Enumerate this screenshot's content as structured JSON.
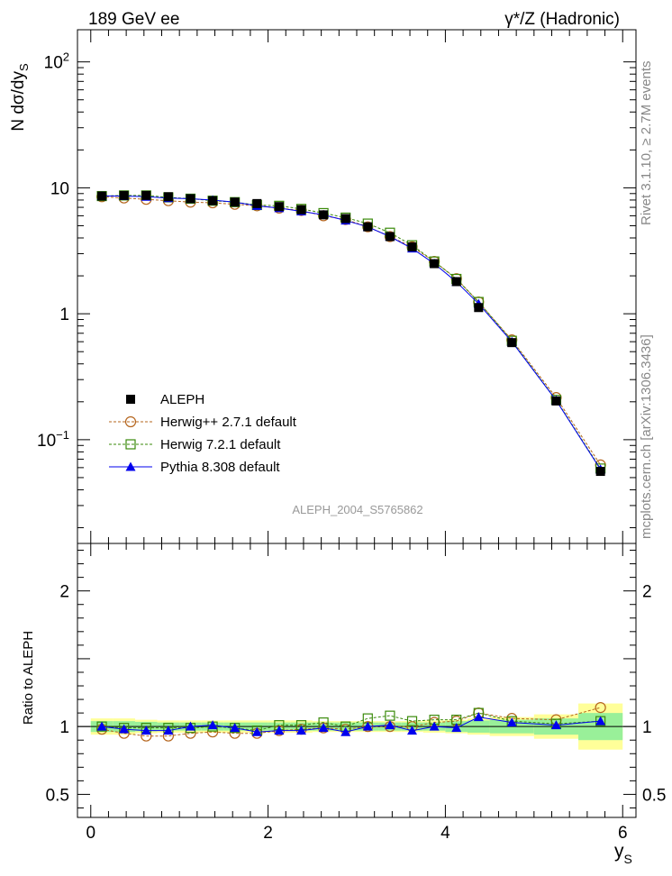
{
  "header": {
    "left": "189 GeV ee",
    "right": "γ*/Z (Hadronic)"
  },
  "side_texts": {
    "rivet": "Rivet 3.1.10, ≥ 2.7M events",
    "mcplots": "mcplots.cern.ch [arXiv:1306.3436]"
  },
  "watermark": "ALEPH_2004_S5765862",
  "colors": {
    "data": "#000000",
    "herwigpp": "#b5651d",
    "herwig7": "#3a8a0a",
    "pythia": "#0000ee",
    "band_inner": "#99f099",
    "band_outer": "#ffff99"
  },
  "chart_data": [
    {
      "type": "scatter",
      "panel": "main",
      "ylabel_main": "N dσ/dy",
      "ylabel_sub": "S",
      "yscale": "log",
      "xlim": [
        -0.15,
        6.15
      ],
      "ylim": [
        0.015,
        180
      ],
      "yticks_major": [
        {
          "value": 100,
          "base": "10",
          "exp": "2"
        },
        {
          "value": 10,
          "base": "10",
          "exp": ""
        },
        {
          "value": 1,
          "base": "1",
          "exp": ""
        },
        {
          "value": 0.1,
          "base": "10",
          "exp": "−1"
        }
      ],
      "x": [
        0.125,
        0.375,
        0.625,
        0.875,
        1.125,
        1.375,
        1.625,
        1.875,
        2.125,
        2.375,
        2.625,
        2.875,
        3.125,
        3.375,
        3.625,
        3.875,
        4.125,
        4.375,
        4.75,
        5.25,
        5.75
      ],
      "series": [
        {
          "name": "ALEPH",
          "key": "data",
          "marker": "square-filled",
          "values": [
            8.6,
            8.7,
            8.7,
            8.5,
            8.2,
            7.9,
            7.7,
            7.5,
            7.1,
            6.7,
            6.1,
            5.7,
            4.9,
            4.1,
            3.4,
            2.5,
            1.8,
            1.12,
            0.59,
            0.203,
            0.056
          ]
        },
        {
          "name": "Herwig++ 2.7.1 default",
          "key": "herwigpp",
          "marker": "circle-open",
          "dash": "3,2",
          "values": [
            8.5,
            8.3,
            8.1,
            7.9,
            7.7,
            7.6,
            7.4,
            7.2,
            6.9,
            6.6,
            6.0,
            5.6,
            4.9,
            4.1,
            3.4,
            2.6,
            1.9,
            1.24,
            0.62,
            0.216,
            0.063
          ]
        },
        {
          "name": "Herwig 7.2.1 default",
          "key": "herwig7",
          "marker": "square-open",
          "dash": "3,2",
          "values": [
            8.6,
            8.7,
            8.7,
            8.4,
            8.2,
            7.9,
            7.7,
            7.3,
            7.2,
            6.8,
            6.3,
            5.8,
            5.2,
            4.4,
            3.5,
            2.6,
            1.89,
            1.24,
            0.61,
            0.207,
            0.059
          ]
        },
        {
          "name": "Pythia 8.308 default",
          "key": "pythia",
          "marker": "triangle-filled",
          "dash": "",
          "values": [
            8.6,
            8.6,
            8.5,
            8.3,
            8.2,
            8.0,
            7.7,
            7.2,
            6.9,
            6.5,
            6.1,
            5.5,
            4.9,
            4.1,
            3.3,
            2.5,
            1.79,
            1.2,
            0.6,
            0.205,
            0.058
          ]
        }
      ]
    },
    {
      "type": "scatter",
      "panel": "ratio",
      "ylabel": "Ratio to ALEPH",
      "xlabel_main": "y",
      "xlabel_sub": "S",
      "xlim": [
        -0.15,
        6.15
      ],
      "ylim": [
        0.33,
        2.35
      ],
      "yticks": [
        0.5,
        1,
        2
      ],
      "xticks": [
        0,
        2,
        4,
        6
      ],
      "bins": [
        [
          0,
          0.25
        ],
        [
          0.25,
          0.5
        ],
        [
          0.5,
          0.75
        ],
        [
          0.75,
          1.0
        ],
        [
          1.0,
          1.25
        ],
        [
          1.25,
          1.5
        ],
        [
          1.5,
          1.75
        ],
        [
          1.75,
          2.0
        ],
        [
          2.0,
          2.25
        ],
        [
          2.25,
          2.5
        ],
        [
          2.5,
          2.75
        ],
        [
          2.75,
          3.0
        ],
        [
          3.0,
          3.25
        ],
        [
          3.25,
          3.5
        ],
        [
          3.5,
          3.75
        ],
        [
          3.75,
          4.0
        ],
        [
          4.0,
          4.25
        ],
        [
          4.25,
          4.5
        ],
        [
          4.5,
          5.0
        ],
        [
          5.0,
          5.5
        ],
        [
          5.5,
          6.0
        ]
      ],
      "band_inner": [
        0.04,
        0.04,
        0.035,
        0.03,
        0.03,
        0.03,
        0.03,
        0.03,
        0.03,
        0.03,
        0.03,
        0.03,
        0.03,
        0.03,
        0.03,
        0.03,
        0.04,
        0.045,
        0.05,
        0.06,
        0.1
      ],
      "band_outer": [
        0.06,
        0.06,
        0.05,
        0.045,
        0.045,
        0.045,
        0.045,
        0.045,
        0.045,
        0.045,
        0.04,
        0.04,
        0.04,
        0.04,
        0.04,
        0.045,
        0.05,
        0.06,
        0.07,
        0.09,
        0.17
      ],
      "series": [
        {
          "key": "herwigpp",
          "values": [
            0.98,
            0.95,
            0.93,
            0.93,
            0.95,
            0.96,
            0.95,
            0.95,
            0.97,
            0.98,
            0.99,
            0.98,
            1.0,
            1.0,
            1.0,
            1.03,
            1.04,
            1.1,
            1.06,
            1.05,
            1.14
          ]
        },
        {
          "key": "herwig7",
          "values": [
            1.0,
            0.99,
            0.99,
            0.99,
            0.99,
            1.0,
            0.99,
            0.97,
            1.01,
            1.01,
            1.03,
            1.0,
            1.06,
            1.08,
            1.04,
            1.05,
            1.05,
            1.1,
            1.04,
            1.02,
            1.04
          ]
        },
        {
          "key": "pythia",
          "values": [
            1.0,
            0.98,
            0.97,
            0.97,
            1.0,
            1.01,
            0.99,
            0.96,
            0.97,
            0.97,
            0.99,
            0.96,
            1.0,
            1.01,
            0.97,
            1.0,
            0.99,
            1.07,
            1.03,
            1.01,
            1.04
          ]
        }
      ]
    }
  ]
}
